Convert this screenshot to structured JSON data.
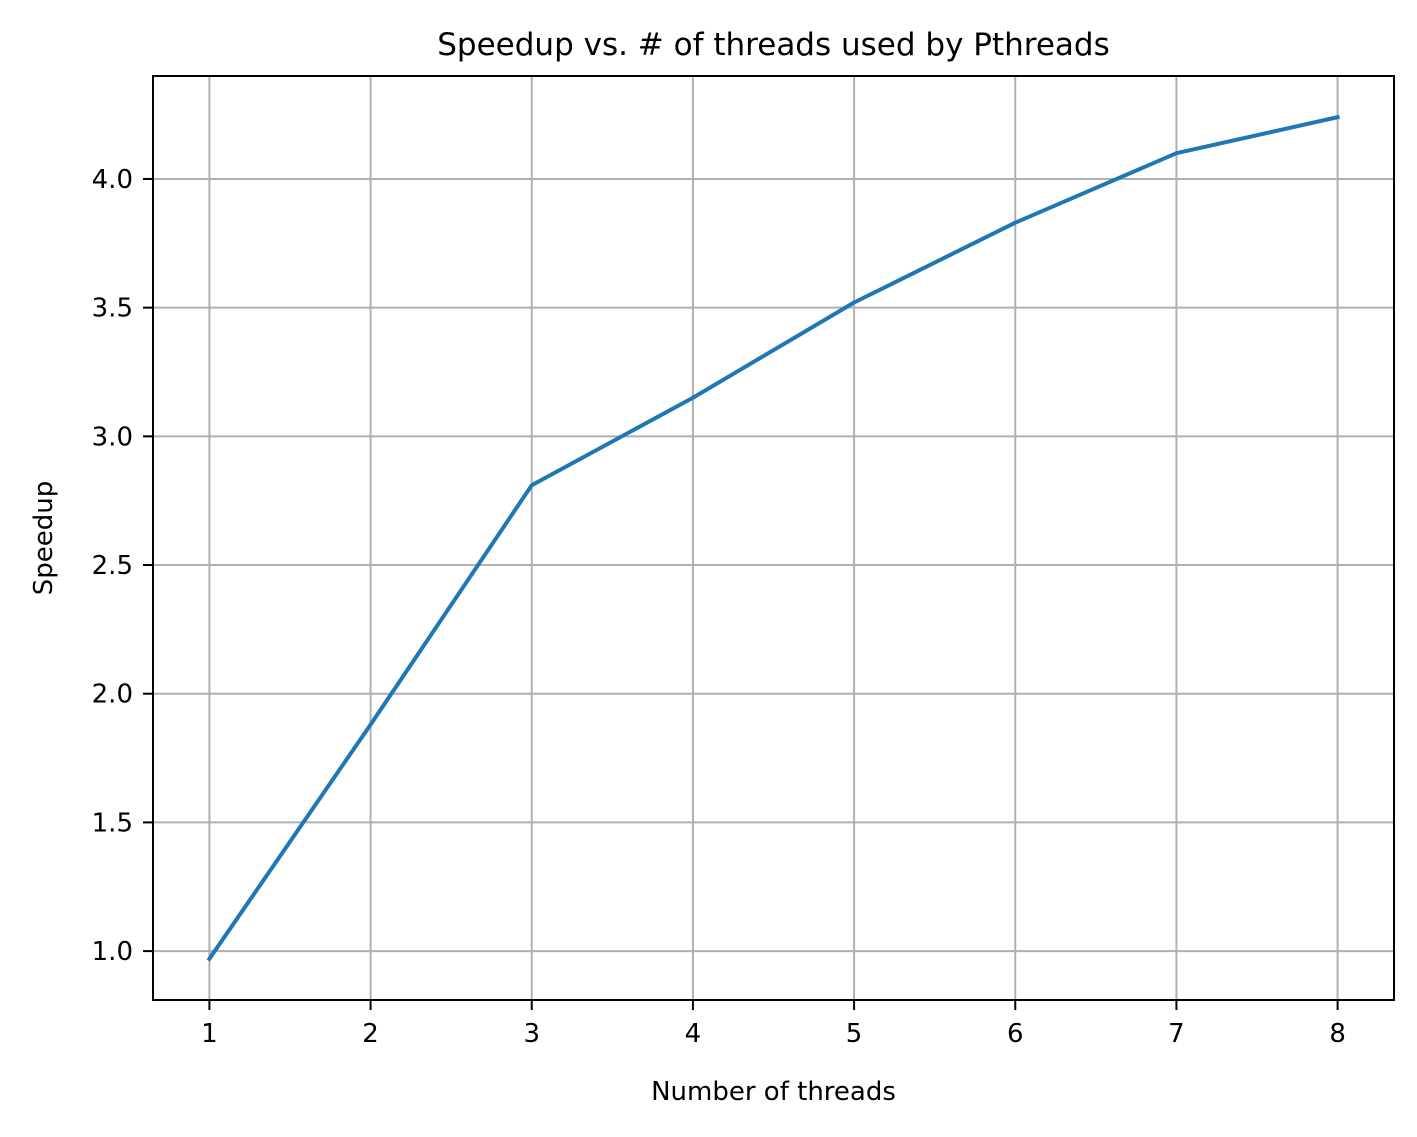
{
  "colors": {
    "series": "#1f77b4",
    "grid": "#b0b0b0",
    "axes": "#000000",
    "background": "#ffffff"
  },
  "chart_data": {
    "type": "line",
    "title": "Speedup vs. # of threads used by Pthreads",
    "xlabel": "Number of threads",
    "ylabel": "Speedup",
    "x": [
      1,
      2,
      3,
      4,
      5,
      6,
      7,
      8
    ],
    "series": [
      {
        "values": [
          0.97,
          1.88,
          2.81,
          3.15,
          3.52,
          3.83,
          4.1,
          4.24
        ]
      }
    ],
    "xlim": [
      0.65,
      8.35
    ],
    "ylim": [
      0.81,
      4.4
    ],
    "xticks": [
      1,
      2,
      3,
      4,
      5,
      6,
      7,
      8
    ],
    "xtick_labels": [
      "1",
      "2",
      "3",
      "4",
      "5",
      "6",
      "7",
      "8"
    ],
    "yticks": [
      1.0,
      1.5,
      2.0,
      2.5,
      3.0,
      3.5,
      4.0
    ],
    "ytick_labels": [
      "1.0",
      "1.5",
      "2.0",
      "2.5",
      "3.0",
      "3.5",
      "4.0"
    ],
    "grid": true,
    "legend": "none"
  }
}
